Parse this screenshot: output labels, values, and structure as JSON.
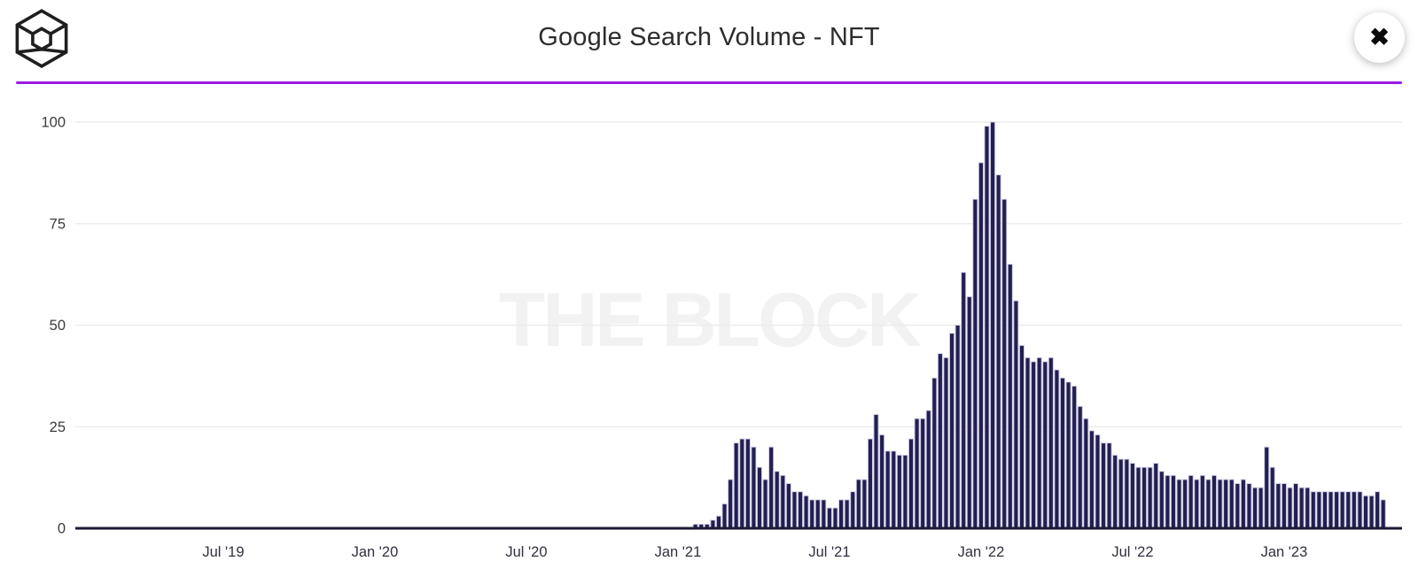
{
  "header": {
    "title": "Google Search Volume - NFT",
    "logo_name": "the-block-cube-logo",
    "close_glyph": "✖",
    "accent_color": "#9a1be0"
  },
  "watermark": "THE BLOCK",
  "chart_data": {
    "type": "bar",
    "title": "Google Search Volume - NFT",
    "xlabel": "",
    "ylabel": "",
    "ylim": [
      0,
      100
    ],
    "yticks": [
      0,
      25,
      50,
      75,
      100
    ],
    "grid": "horizontal-only",
    "legend": "none",
    "xtick_labels": [
      "Jul '19",
      "Jan '20",
      "Jul '20",
      "Jan '21",
      "Jul '21",
      "Jan '22",
      "Jul '22",
      "Jan '23"
    ],
    "xtick_week_indices": [
      25,
      51,
      77,
      103,
      129,
      155,
      181,
      207
    ],
    "weeks_total": 225,
    "values_start_week_index": 106,
    "values_before_start": 0,
    "values": [
      1,
      1,
      1,
      2,
      3,
      6,
      12,
      21,
      22,
      22,
      20,
      15,
      12,
      20,
      14,
      13,
      11,
      9,
      9,
      8,
      7,
      7,
      7,
      5,
      5,
      7,
      7,
      9,
      12,
      12,
      22,
      28,
      23,
      19,
      19,
      18,
      18,
      22,
      27,
      27,
      29,
      37,
      43,
      42,
      48,
      50,
      63,
      57,
      81,
      90,
      99,
      100,
      87,
      81,
      65,
      56,
      45,
      42,
      41,
      42,
      41,
      42,
      39,
      37,
      36,
      35,
      30,
      27,
      24,
      23,
      21,
      21,
      18,
      17,
      17,
      16,
      15,
      15,
      15,
      16,
      14,
      13,
      13,
      12,
      12,
      13,
      12,
      13,
      12,
      13,
      12,
      12,
      12,
      11,
      12,
      11,
      10,
      10,
      20,
      15,
      11,
      11,
      10,
      11,
      10,
      10,
      9,
      9,
      9,
      9,
      9,
      9,
      9,
      9,
      9,
      8,
      8,
      9,
      7
    ],
    "bar_color": "#232050",
    "bar_edge_color": "#c9c6e4",
    "grid_color": "#ececec",
    "axis_line_color": "#1b1a33"
  }
}
